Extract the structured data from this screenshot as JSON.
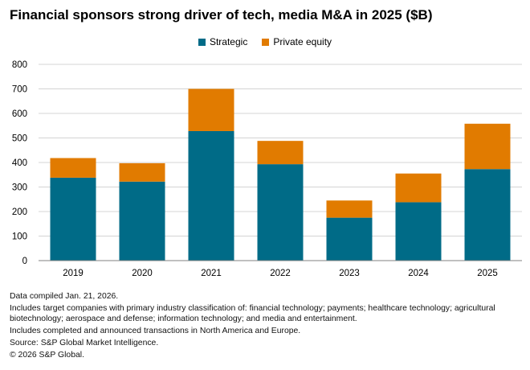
{
  "colors": {
    "strategic": "#006B87",
    "private_equity": "#E17B00",
    "grid": "#d4d4d4",
    "axis": "#808080"
  },
  "chart_data": {
    "type": "bar",
    "stacked": true,
    "title": "Financial sponsors strong driver of tech, media M&A in 2025 ($B)",
    "categories": [
      "2019",
      "2020",
      "2021",
      "2022",
      "2023",
      "2024",
      "2025"
    ],
    "series": [
      {
        "name": "Strategic",
        "values": [
          338,
          322,
          528,
          393,
          175,
          238,
          373
        ]
      },
      {
        "name": "Private equity",
        "values": [
          80,
          75,
          172,
          95,
          70,
          117,
          185
        ]
      }
    ],
    "ylim": [
      0,
      800
    ],
    "yticks": [
      "0",
      "100",
      "200",
      "300",
      "400",
      "500",
      "600",
      "700",
      "800"
    ],
    "xlabel": "",
    "ylabel": "",
    "legend_position": "top-center",
    "grid": true
  },
  "notes": [
    "Data compiled Jan. 21, 2026.",
    "Includes target companies with primary industry classification of: financial technology; payments; healthcare technology; agricultural biotechnology; aerospace and defense; information technology; and media and entertainment.",
    "Includes completed and announced transactions in North America and Europe.",
    "Source: S&P Global Market Intelligence.",
    "© 2026 S&P Global."
  ]
}
